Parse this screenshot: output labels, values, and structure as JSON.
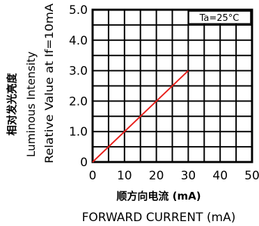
{
  "chart_data": {
    "type": "line",
    "title": "",
    "annotation": "Ta=25°C",
    "xlabel_cn": "顺方向电流 (mA)",
    "xlabel": "FORWARD CURRENT (mA)",
    "ylabel_cn": "相对发光亮度",
    "ylabel_line1": "Luminous Intensity",
    "ylabel_line2": "Relative Value at If=10mA",
    "xlim": [
      0,
      50
    ],
    "ylim": [
      0,
      5
    ],
    "x_ticks": [
      "0",
      "10",
      "20",
      "30",
      "40",
      "50"
    ],
    "y_ticks": [
      "0",
      "1.0",
      "2.0",
      "3.0",
      "4.0",
      "5.0"
    ],
    "grid": true,
    "series": [
      {
        "x": [
          0,
          30
        ],
        "y": [
          0,
          3.0
        ],
        "color": "#e8201c"
      }
    ]
  }
}
